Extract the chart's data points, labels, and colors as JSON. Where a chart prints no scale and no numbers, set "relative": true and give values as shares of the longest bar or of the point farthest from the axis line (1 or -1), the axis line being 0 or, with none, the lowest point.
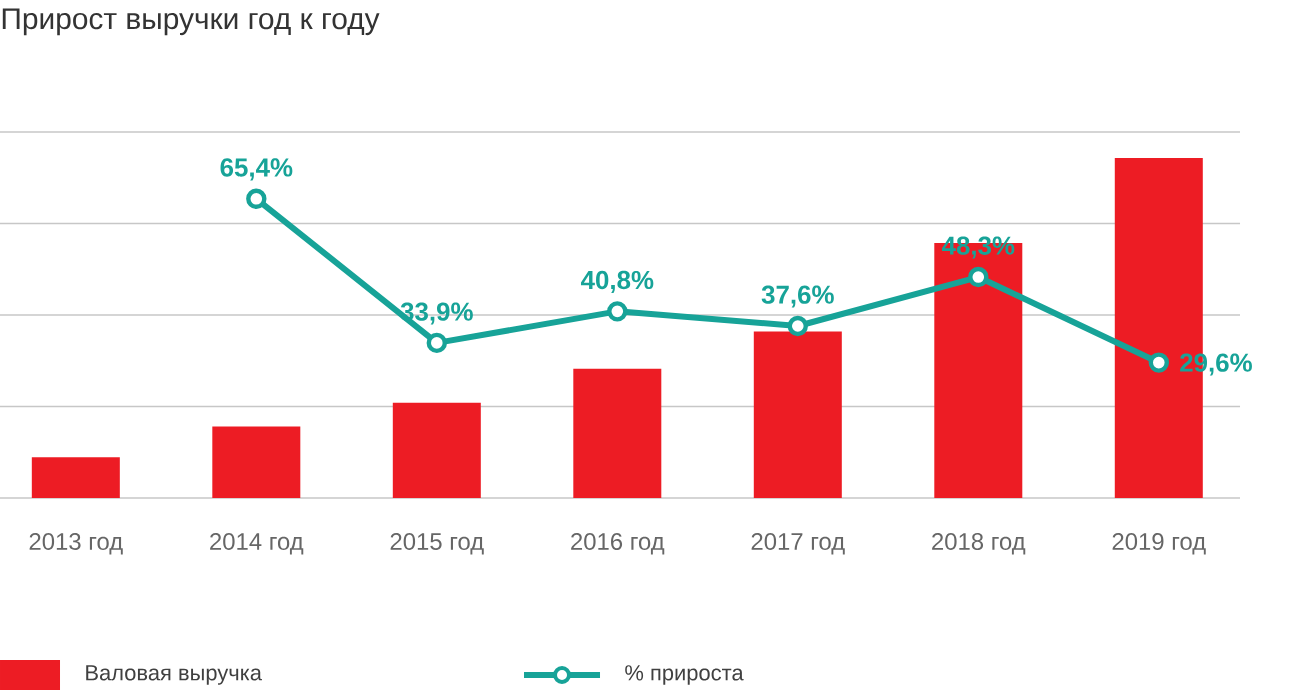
{
  "chart_data": [
    {
      "type": "bar",
      "title": "Прирост выручки год к году",
      "categories": [
        "2013 год",
        "2014 год",
        "2015 год",
        "2016 год",
        "2017 год",
        "2018 год",
        "2019 год"
      ],
      "relative": true,
      "series": [
        {
          "name": "Валовая выручка",
          "color": "#ed1c24",
          "values": [
            0.12,
            0.21,
            0.28,
            0.38,
            0.49,
            0.75,
            1
          ]
        }
      ],
      "legend": "bottom"
    },
    {
      "type": "line",
      "categories": [
        null,
        null,
        null,
        null,
        null,
        null,
        null
      ],
      "series": [
        {
          "name": "% прироста",
          "color": "#17a398",
          "values": [
            null,
            65.4,
            33.9,
            40.8,
            37.6,
            48.3,
            29.6
          ],
          "value_labels": [
            null,
            "65,4%",
            "33,9%",
            "40,8%",
            "37,6%",
            "48,3%",
            "29,6%"
          ]
        }
      ],
      "marker": "circle",
      "ylim": [
        0,
        80
      ],
      "yticks": [
        {
          "value": 0,
          "label": null
        },
        {
          "value": 20,
          "label": null
        },
        {
          "value": 40,
          "label": null
        },
        {
          "value": 60,
          "label": null
        },
        {
          "value": 80,
          "label": null
        }
      ],
      "grid": "y",
      "legend": "bottom"
    }
  ]
}
